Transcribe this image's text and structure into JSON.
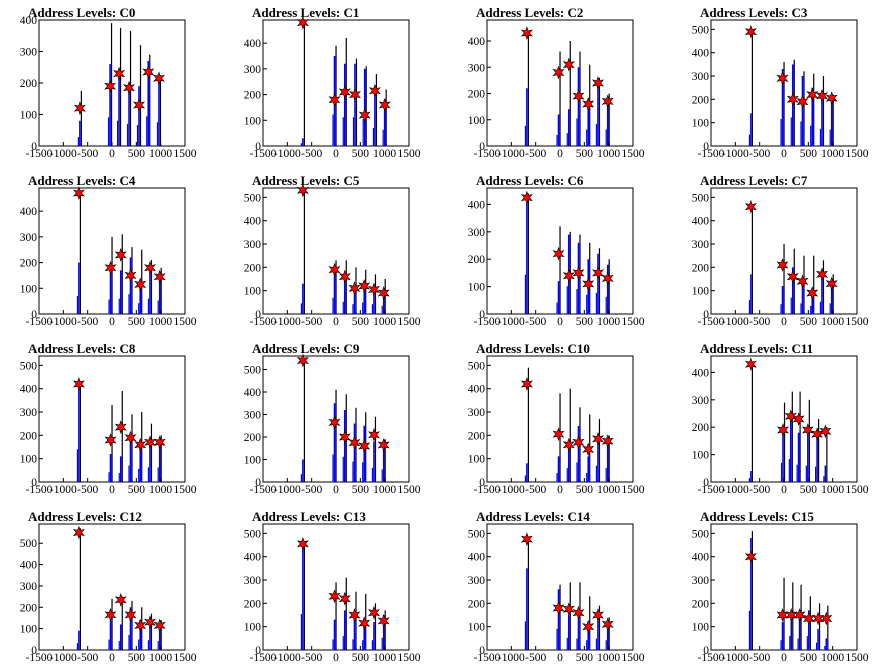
{
  "figure": {
    "title_prefix": "Address Levels: "
  },
  "chart_data": [
    {
      "type": "bar",
      "title": "Address Levels: C0",
      "xlim": [
        -1500,
        1500
      ],
      "ylim": [
        0,
        400
      ],
      "yticks": [
        0,
        100,
        200,
        300,
        400
      ],
      "xticks": [
        -1500,
        -1000,
        -500,
        0,
        500,
        1000,
        1500
      ],
      "peaks": [
        {
          "x": -660,
          "black": 175,
          "blue": 80,
          "star": 120
        },
        {
          "x": -40,
          "black": 390,
          "blue": 260,
          "star": 190
        },
        {
          "x": 145,
          "black": 375,
          "blue": 230,
          "star": 230
        },
        {
          "x": 350,
          "black": 365,
          "blue": 200,
          "star": 185
        },
        {
          "x": 555,
          "black": 320,
          "blue": 190,
          "star": 130
        },
        {
          "x": 745,
          "black": 290,
          "blue": 270,
          "star": 235
        },
        {
          "x": 965,
          "black": 225,
          "blue": 215,
          "star": 215
        }
      ]
    },
    {
      "type": "bar",
      "title": "Address Levels: C1",
      "xlim": [
        -1500,
        1500
      ],
      "ylim": [
        0,
        490
      ],
      "yticks": [
        0,
        100,
        200,
        300,
        400
      ],
      "xticks": [
        -1500,
        -1000,
        -500,
        0,
        500,
        1000,
        1500
      ],
      "peaks": [
        {
          "x": -680,
          "black": 480,
          "blue": 30,
          "star": 480
        },
        {
          "x": -30,
          "black": 390,
          "blue": 350,
          "star": 180
        },
        {
          "x": 180,
          "black": 420,
          "blue": 320,
          "star": 210
        },
        {
          "x": 390,
          "black": 340,
          "blue": 320,
          "star": 200
        },
        {
          "x": 590,
          "black": 310,
          "blue": 300,
          "star": 120
        },
        {
          "x": 800,
          "black": 280,
          "blue": 200,
          "star": 215
        },
        {
          "x": 1000,
          "black": 220,
          "blue": 180,
          "star": 160
        }
      ]
    },
    {
      "type": "bar",
      "title": "Address Levels: C2",
      "xlim": [
        -1500,
        1500
      ],
      "ylim": [
        0,
        480
      ],
      "yticks": [
        0,
        100,
        200,
        300,
        400
      ],
      "xticks": [
        -1500,
        -1000,
        -500,
        0,
        500,
        1000,
        1500
      ],
      "peaks": [
        {
          "x": -680,
          "black": 430,
          "blue": 220,
          "star": 430
        },
        {
          "x": -30,
          "black": 360,
          "blue": 120,
          "star": 280
        },
        {
          "x": 180,
          "black": 400,
          "blue": 140,
          "star": 310
        },
        {
          "x": 380,
          "black": 360,
          "blue": 300,
          "star": 190
        },
        {
          "x": 580,
          "black": 310,
          "blue": 180,
          "star": 160
        },
        {
          "x": 780,
          "black": 260,
          "blue": 240,
          "star": 240
        },
        {
          "x": 980,
          "black": 200,
          "blue": 180,
          "star": 170
        }
      ]
    },
    {
      "type": "bar",
      "title": "Address Levels: C3",
      "xlim": [
        -1500,
        1500
      ],
      "ylim": [
        0,
        540
      ],
      "yticks": [
        0,
        100,
        200,
        300,
        400,
        500
      ],
      "xticks": [
        -1500,
        -1000,
        -500,
        0,
        500,
        1000,
        1500
      ],
      "peaks": [
        {
          "x": -680,
          "black": 490,
          "blue": 140,
          "star": 490
        },
        {
          "x": -30,
          "black": 360,
          "blue": 330,
          "star": 290
        },
        {
          "x": 180,
          "black": 370,
          "blue": 350,
          "star": 200
        },
        {
          "x": 380,
          "black": 320,
          "blue": 300,
          "star": 190
        },
        {
          "x": 580,
          "black": 310,
          "blue": 250,
          "star": 220
        },
        {
          "x": 780,
          "black": 300,
          "blue": 210,
          "star": 215
        },
        {
          "x": 980,
          "black": 220,
          "blue": 200,
          "star": 205
        }
      ]
    },
    {
      "type": "bar",
      "title": "Address Levels: C4",
      "xlim": [
        -1500,
        1500
      ],
      "ylim": [
        0,
        490
      ],
      "yticks": [
        0,
        100,
        200,
        300,
        400
      ],
      "xticks": [
        -1500,
        -1000,
        -500,
        0,
        500,
        1000,
        1500
      ],
      "peaks": [
        {
          "x": -680,
          "black": 470,
          "blue": 200,
          "star": 470
        },
        {
          "x": -30,
          "black": 300,
          "blue": 160,
          "star": 180
        },
        {
          "x": 180,
          "black": 310,
          "blue": 170,
          "star": 230
        },
        {
          "x": 380,
          "black": 260,
          "blue": 220,
          "star": 150
        },
        {
          "x": 580,
          "black": 250,
          "blue": 120,
          "star": 115
        },
        {
          "x": 780,
          "black": 210,
          "blue": 170,
          "star": 180
        },
        {
          "x": 980,
          "black": 180,
          "blue": 150,
          "star": 145
        }
      ]
    },
    {
      "type": "bar",
      "title": "Address Levels: C5",
      "xlim": [
        -1500,
        1500
      ],
      "ylim": [
        0,
        540
      ],
      "yticks": [
        0,
        100,
        200,
        300,
        400,
        500
      ],
      "xticks": [
        -1500,
        -1000,
        -500,
        0,
        500,
        1000,
        1500
      ],
      "peaks": [
        {
          "x": -680,
          "black": 530,
          "blue": 130,
          "star": 530
        },
        {
          "x": -30,
          "black": 230,
          "blue": 200,
          "star": 190
        },
        {
          "x": 180,
          "black": 230,
          "blue": 150,
          "star": 160
        },
        {
          "x": 380,
          "black": 200,
          "blue": 120,
          "star": 110
        },
        {
          "x": 580,
          "black": 190,
          "blue": 140,
          "star": 120
        },
        {
          "x": 780,
          "black": 170,
          "blue": 120,
          "star": 105
        },
        {
          "x": 980,
          "black": 150,
          "blue": 100,
          "star": 90
        }
      ]
    },
    {
      "type": "bar",
      "title": "Address Levels: C6",
      "xlim": [
        -1500,
        1500
      ],
      "ylim": [
        0,
        460
      ],
      "yticks": [
        0,
        100,
        200,
        300,
        400
      ],
      "xticks": [
        -1500,
        -1000,
        -500,
        0,
        500,
        1000,
        1500
      ],
      "peaks": [
        {
          "x": -680,
          "black": 440,
          "blue": 410,
          "star": 425
        },
        {
          "x": -30,
          "black": 320,
          "blue": 120,
          "star": 220
        },
        {
          "x": 180,
          "black": 300,
          "blue": 290,
          "star": 140
        },
        {
          "x": 380,
          "black": 290,
          "blue": 260,
          "star": 150
        },
        {
          "x": 580,
          "black": 260,
          "blue": 200,
          "star": 110
        },
        {
          "x": 780,
          "black": 240,
          "blue": 220,
          "star": 150
        },
        {
          "x": 980,
          "black": 200,
          "blue": 180,
          "star": 130
        }
      ]
    },
    {
      "type": "bar",
      "title": "Address Levels: C7",
      "xlim": [
        -1500,
        1500
      ],
      "ylim": [
        0,
        540
      ],
      "yticks": [
        0,
        100,
        200,
        300,
        400,
        500
      ],
      "xticks": [
        -1500,
        -1000,
        -500,
        0,
        500,
        1000,
        1500
      ],
      "peaks": [
        {
          "x": -680,
          "black": 460,
          "blue": 170,
          "star": 460
        },
        {
          "x": -30,
          "black": 300,
          "blue": 120,
          "star": 210
        },
        {
          "x": 180,
          "black": 280,
          "blue": 200,
          "star": 160
        },
        {
          "x": 380,
          "black": 250,
          "blue": 130,
          "star": 140
        },
        {
          "x": 580,
          "black": 250,
          "blue": 100,
          "star": 90
        },
        {
          "x": 780,
          "black": 230,
          "blue": 150,
          "star": 170
        },
        {
          "x": 980,
          "black": 170,
          "blue": 130,
          "star": 130
        }
      ]
    },
    {
      "type": "bar",
      "title": "Address Levels: C8",
      "xlim": [
        -1500,
        1500
      ],
      "ylim": [
        0,
        540
      ],
      "yticks": [
        0,
        100,
        200,
        300,
        400,
        500
      ],
      "xticks": [
        -1500,
        -1000,
        -500,
        0,
        500,
        1000,
        1500
      ],
      "peaks": [
        {
          "x": -680,
          "black": 420,
          "blue": 400,
          "star": 420
        },
        {
          "x": -30,
          "black": 330,
          "blue": 120,
          "star": 180
        },
        {
          "x": 180,
          "black": 390,
          "blue": 110,
          "star": 235
        },
        {
          "x": 380,
          "black": 290,
          "blue": 200,
          "star": 190
        },
        {
          "x": 580,
          "black": 300,
          "blue": 160,
          "star": 160
        },
        {
          "x": 780,
          "black": 250,
          "blue": 180,
          "star": 170
        },
        {
          "x": 980,
          "black": 200,
          "blue": 180,
          "star": 170
        }
      ]
    },
    {
      "type": "bar",
      "title": "Address Levels: C9",
      "xlim": [
        -1500,
        1500
      ],
      "ylim": [
        0,
        560
      ],
      "yticks": [
        0,
        100,
        200,
        300,
        400,
        500
      ],
      "xticks": [
        -1500,
        -1000,
        -500,
        0,
        500,
        1000,
        1500
      ],
      "peaks": [
        {
          "x": -680,
          "black": 540,
          "blue": 100,
          "star": 540
        },
        {
          "x": -30,
          "black": 410,
          "blue": 350,
          "star": 265
        },
        {
          "x": 180,
          "black": 390,
          "blue": 320,
          "star": 200
        },
        {
          "x": 380,
          "black": 330,
          "blue": 260,
          "star": 175
        },
        {
          "x": 580,
          "black": 310,
          "blue": 250,
          "star": 160
        },
        {
          "x": 780,
          "black": 290,
          "blue": 180,
          "star": 210
        },
        {
          "x": 980,
          "black": 190,
          "blue": 160,
          "star": 165
        }
      ]
    },
    {
      "type": "bar",
      "title": "Address Levels: C10",
      "xlim": [
        -1500,
        1500
      ],
      "ylim": [
        0,
        540
      ],
      "yticks": [
        0,
        100,
        200,
        300,
        400,
        500
      ],
      "xticks": [
        -1500,
        -1000,
        -500,
        0,
        500,
        1000,
        1500
      ],
      "peaks": [
        {
          "x": -680,
          "black": 490,
          "blue": 80,
          "star": 420
        },
        {
          "x": -30,
          "black": 380,
          "blue": 110,
          "star": 205
        },
        {
          "x": 180,
          "black": 400,
          "blue": 170,
          "star": 160
        },
        {
          "x": 380,
          "black": 320,
          "blue": 240,
          "star": 170
        },
        {
          "x": 580,
          "black": 290,
          "blue": 110,
          "star": 140
        },
        {
          "x": 780,
          "black": 270,
          "blue": 200,
          "star": 185
        },
        {
          "x": 980,
          "black": 200,
          "blue": 170,
          "star": 175
        }
      ]
    },
    {
      "type": "bar",
      "title": "Address Levels: C11",
      "xlim": [
        -1500,
        1500
      ],
      "ylim": [
        0,
        460
      ],
      "yticks": [
        0,
        100,
        200,
        300,
        400
      ],
      "xticks": [
        -1500,
        -1000,
        -500,
        0,
        500,
        1000,
        1500
      ],
      "peaks": [
        {
          "x": -680,
          "black": 440,
          "blue": 40,
          "star": 430
        },
        {
          "x": -20,
          "black": 290,
          "blue": 200,
          "star": 190
        },
        {
          "x": 140,
          "black": 330,
          "blue": 240,
          "star": 240
        },
        {
          "x": 300,
          "black": 330,
          "blue": 180,
          "star": 230
        },
        {
          "x": 490,
          "black": 300,
          "blue": 170,
          "star": 190
        },
        {
          "x": 680,
          "black": 230,
          "blue": 160,
          "star": 175
        },
        {
          "x": 850,
          "black": 200,
          "blue": 60,
          "star": 185
        }
      ]
    },
    {
      "type": "bar",
      "title": "Address Levels: C12",
      "xlim": [
        -1500,
        1500
      ],
      "ylim": [
        0,
        590
      ],
      "yticks": [
        0,
        100,
        200,
        300,
        400,
        500
      ],
      "xticks": [
        -1500,
        -1000,
        -500,
        0,
        500,
        1000,
        1500
      ],
      "peaks": [
        {
          "x": -680,
          "black": 570,
          "blue": 90,
          "star": 550
        },
        {
          "x": -30,
          "black": 240,
          "blue": 140,
          "star": 165
        },
        {
          "x": 180,
          "black": 250,
          "blue": 120,
          "star": 235
        },
        {
          "x": 380,
          "black": 230,
          "blue": 200,
          "star": 165
        },
        {
          "x": 580,
          "black": 200,
          "blue": 140,
          "star": 115
        },
        {
          "x": 780,
          "black": 170,
          "blue": 130,
          "star": 130
        },
        {
          "x": 980,
          "black": 140,
          "blue": 120,
          "star": 115
        }
      ]
    },
    {
      "type": "bar",
      "title": "Address Levels: C13",
      "xlim": [
        -1500,
        1500
      ],
      "ylim": [
        0,
        540
      ],
      "yticks": [
        0,
        100,
        200,
        300,
        400,
        500
      ],
      "xticks": [
        -1500,
        -1000,
        -500,
        0,
        500,
        1000,
        1500
      ],
      "peaks": [
        {
          "x": -680,
          "black": 460,
          "blue": 440,
          "star": 455
        },
        {
          "x": -30,
          "black": 290,
          "blue": 130,
          "star": 230
        },
        {
          "x": 180,
          "black": 310,
          "blue": 170,
          "star": 220
        },
        {
          "x": 380,
          "black": 250,
          "blue": 130,
          "star": 150
        },
        {
          "x": 580,
          "black": 240,
          "blue": 120,
          "star": 115
        },
        {
          "x": 780,
          "black": 200,
          "blue": 120,
          "star": 160
        },
        {
          "x": 980,
          "black": 170,
          "blue": 150,
          "star": 125
        }
      ]
    },
    {
      "type": "bar",
      "title": "Address Levels: C14",
      "xlim": [
        -1500,
        1500
      ],
      "ylim": [
        0,
        540
      ],
      "yticks": [
        0,
        100,
        200,
        300,
        400,
        500
      ],
      "xticks": [
        -1500,
        -1000,
        -500,
        0,
        500,
        1000,
        1500
      ],
      "peaks": [
        {
          "x": -680,
          "black": 480,
          "blue": 350,
          "star": 475
        },
        {
          "x": -30,
          "black": 280,
          "blue": 260,
          "star": 180
        },
        {
          "x": 180,
          "black": 290,
          "blue": 150,
          "star": 175
        },
        {
          "x": 380,
          "black": 290,
          "blue": 140,
          "star": 160
        },
        {
          "x": 580,
          "black": 230,
          "blue": 120,
          "star": 100
        },
        {
          "x": 780,
          "black": 190,
          "blue": 140,
          "star": 150
        },
        {
          "x": 980,
          "black": 140,
          "blue": 120,
          "star": 110
        }
      ]
    },
    {
      "type": "bar",
      "title": "Address Levels: C15",
      "xlim": [
        -1500,
        1500
      ],
      "ylim": [
        0,
        540
      ],
      "yticks": [
        0,
        100,
        200,
        300,
        400,
        500
      ],
      "xticks": [
        -1500,
        -1000,
        -500,
        0,
        500,
        1000,
        1500
      ],
      "peaks": [
        {
          "x": -680,
          "black": 510,
          "blue": 480,
          "star": 400
        },
        {
          "x": -30,
          "black": 310,
          "blue": 120,
          "star": 150
        },
        {
          "x": 150,
          "black": 290,
          "blue": 170,
          "star": 150
        },
        {
          "x": 320,
          "black": 280,
          "blue": 140,
          "star": 150
        },
        {
          "x": 510,
          "black": 230,
          "blue": 170,
          "star": 135
        },
        {
          "x": 700,
          "black": 200,
          "blue": 90,
          "star": 135
        },
        {
          "x": 870,
          "black": 190,
          "blue": 50,
          "star": 135
        }
      ]
    }
  ]
}
